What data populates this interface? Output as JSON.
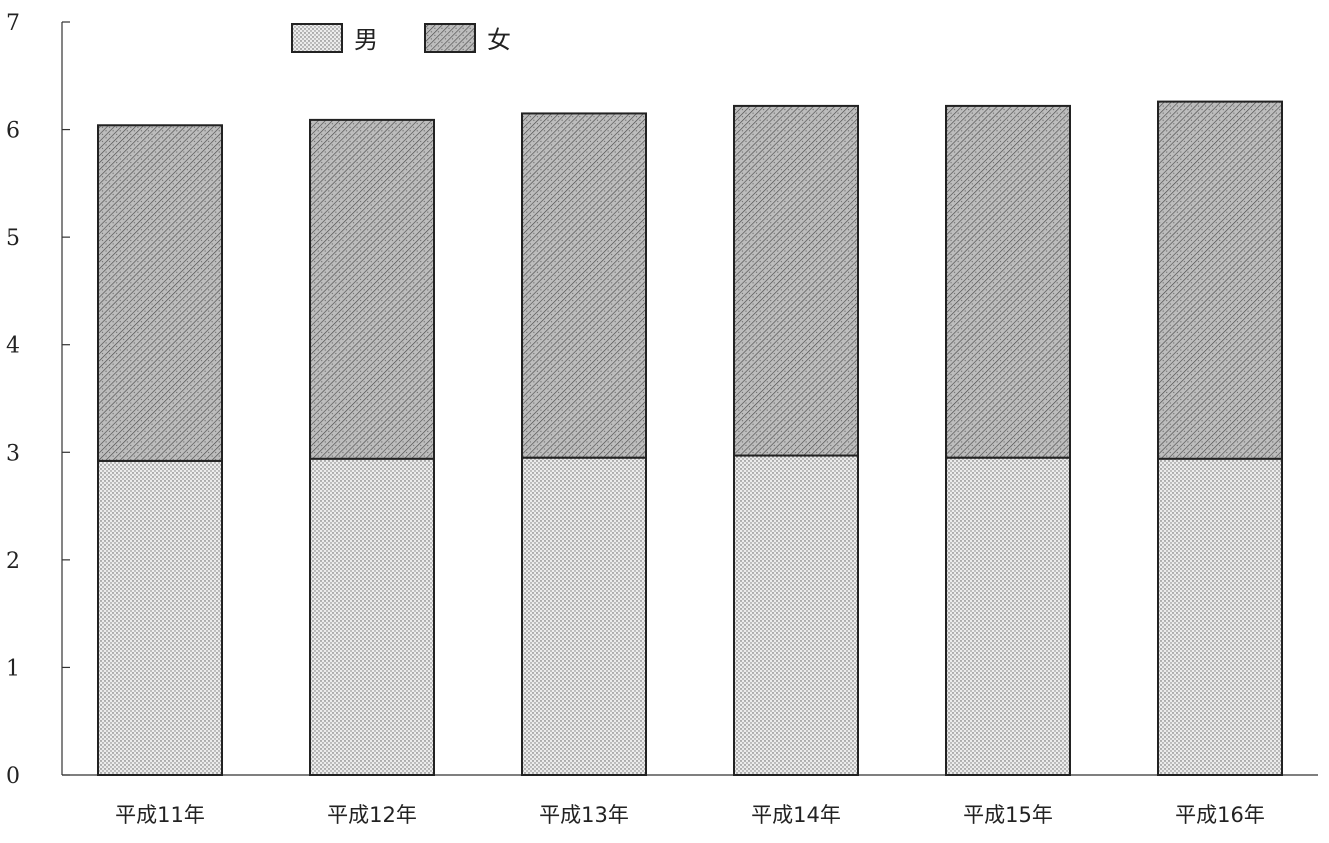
{
  "chart_data": {
    "type": "bar",
    "stacked": true,
    "categories": [
      "平成11年",
      "平成12年",
      "平成13年",
      "平成14年",
      "平成15年",
      "平成16年"
    ],
    "series": [
      {
        "name": "男",
        "values": [
          2.92,
          2.94,
          2.95,
          2.97,
          2.95,
          2.94
        ],
        "color": "#e6e6e6",
        "pattern": "dots"
      },
      {
        "name": "女",
        "values": [
          3.12,
          3.15,
          3.2,
          3.25,
          3.27,
          3.32
        ],
        "color": "#b4b4b4",
        "pattern": "diagonal-hatch"
      }
    ],
    "yticks": [
      "0",
      "1",
      "2",
      "3",
      "4",
      "5",
      "6",
      "7"
    ],
    "ylim": [
      0,
      7
    ],
    "grid": false,
    "legend_position": "top"
  }
}
